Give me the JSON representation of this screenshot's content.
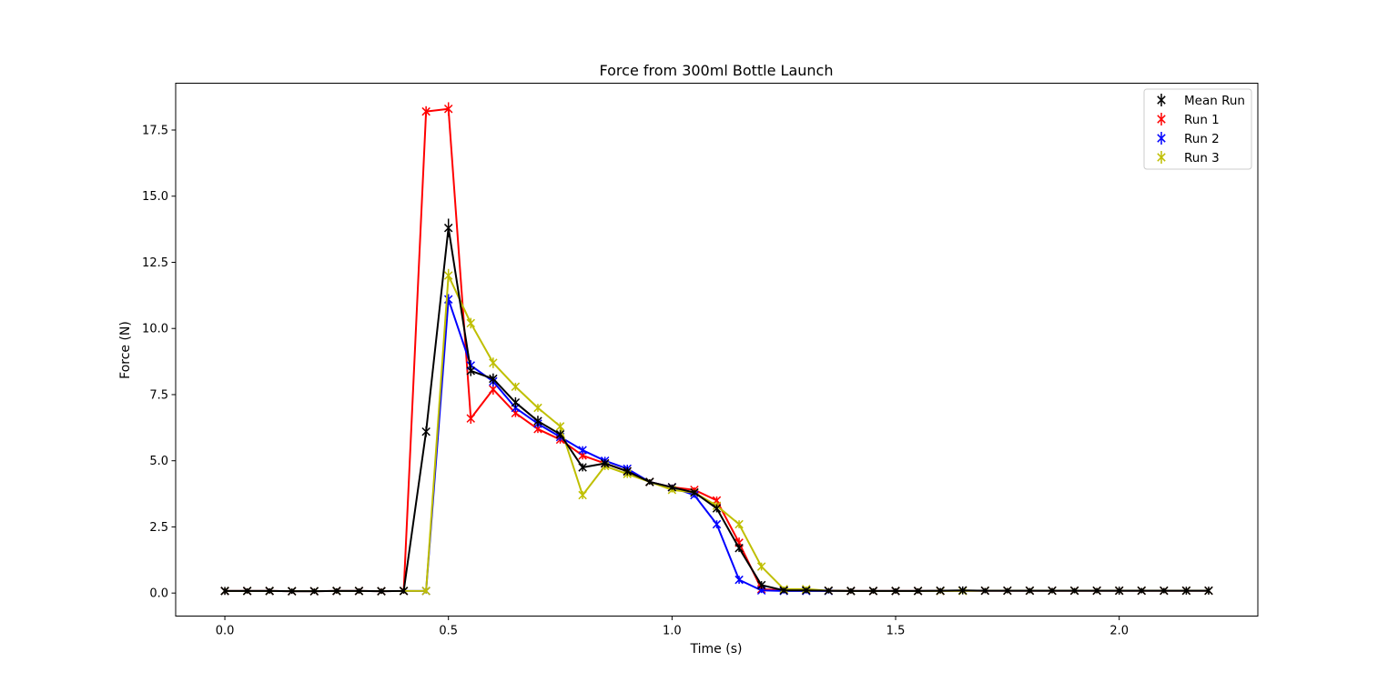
{
  "chart_data": {
    "type": "line",
    "title": "Force from 300ml Bottle Launch",
    "xlabel": "Time (s)",
    "ylabel": "Force (N)",
    "xlim": [
      -0.11,
      2.31
    ],
    "ylim": [
      -0.87,
      19.27
    ],
    "xticks": [
      0.0,
      0.5,
      1.0,
      1.5,
      2.0
    ],
    "xtick_labels": [
      "0.0",
      "0.5",
      "1.0",
      "1.5",
      "2.0"
    ],
    "yticks": [
      0.0,
      2.5,
      5.0,
      7.5,
      10.0,
      12.5,
      15.0,
      17.5
    ],
    "ytick_labels": [
      "0.0",
      "2.5",
      "5.0",
      "7.5",
      "10.0",
      "12.5",
      "15.0",
      "17.5"
    ],
    "grid": false,
    "legend_position": "upper right",
    "marker": "x with vertical error bar",
    "x": [
      0.0,
      0.05,
      0.1,
      0.15,
      0.2,
      0.25,
      0.3,
      0.35,
      0.4,
      0.45,
      0.5,
      0.55,
      0.6,
      0.65,
      0.7,
      0.75,
      0.8,
      0.85,
      0.9,
      0.95,
      1.0,
      1.05,
      1.1,
      1.15,
      1.2,
      1.25,
      1.3,
      1.35,
      1.4,
      1.45,
      1.5,
      1.55,
      1.6,
      1.65,
      1.7,
      1.75,
      1.8,
      1.85,
      1.9,
      1.95,
      2.0,
      2.05,
      2.1,
      2.15,
      2.2
    ],
    "series": [
      {
        "name": "Mean Run",
        "color": "#000000",
        "values": [
          0.08,
          0.08,
          0.08,
          0.07,
          0.07,
          0.08,
          0.08,
          0.07,
          0.08,
          6.1,
          13.8,
          8.4,
          8.1,
          7.2,
          6.5,
          6.0,
          4.75,
          4.9,
          4.6,
          4.2,
          4.0,
          3.8,
          3.2,
          1.7,
          0.3,
          0.1,
          0.1,
          0.09,
          0.08,
          0.08,
          0.08,
          0.08,
          0.09,
          0.1,
          0.09,
          0.09,
          0.09,
          0.09,
          0.09,
          0.09,
          0.09,
          0.09,
          0.09,
          0.09,
          0.09
        ],
        "errors": [
          0.15,
          0.1,
          0.1,
          0.1,
          0.1,
          0.1,
          0.1,
          0.1,
          0.1,
          0.2,
          0.35,
          0.2,
          0.2,
          0.2,
          0.2,
          0.15,
          0.15,
          0.15,
          0.15,
          0.1,
          0.1,
          0.1,
          0.15,
          0.15,
          0.15,
          0.1,
          0.1,
          0.1,
          0.1,
          0.1,
          0.1,
          0.1,
          0.1,
          0.15,
          0.1,
          0.1,
          0.1,
          0.1,
          0.1,
          0.1,
          0.15,
          0.1,
          0.1,
          0.15,
          0.15
        ]
      },
      {
        "name": "Run 1",
        "color": "#ff0000",
        "values": [
          0.08,
          0.08,
          0.08,
          0.07,
          0.07,
          0.08,
          0.08,
          0.07,
          0.08,
          18.2,
          18.3,
          6.6,
          7.7,
          6.8,
          6.2,
          5.8,
          5.2,
          4.9,
          4.6,
          4.2,
          4.0,
          3.9,
          3.5,
          1.9,
          0.15,
          0.1,
          0.1,
          0.09,
          0.08,
          0.08,
          0.08,
          0.08,
          0.08,
          0.09,
          0.09,
          0.09,
          0.09,
          0.09,
          0.09,
          0.09,
          0.09,
          0.09,
          0.09,
          0.09,
          0.09
        ],
        "errors": [
          0.1,
          0.1,
          0.1,
          0.1,
          0.1,
          0.1,
          0.1,
          0.1,
          0.1,
          0.2,
          0.25,
          0.2,
          0.2,
          0.15,
          0.15,
          0.15,
          0.15,
          0.15,
          0.15,
          0.1,
          0.1,
          0.1,
          0.15,
          0.2,
          0.1,
          0.1,
          0.1,
          0.1,
          0.1,
          0.1,
          0.1,
          0.1,
          0.1,
          0.1,
          0.1,
          0.1,
          0.1,
          0.1,
          0.1,
          0.1,
          0.1,
          0.1,
          0.1,
          0.1,
          0.1
        ]
      },
      {
        "name": "Run 2",
        "color": "#0000ff",
        "values": [
          0.08,
          0.08,
          0.08,
          0.07,
          0.07,
          0.08,
          0.08,
          0.07,
          0.08,
          0.08,
          11.1,
          8.6,
          8.0,
          7.0,
          6.4,
          5.9,
          5.4,
          5.0,
          4.7,
          4.2,
          4.0,
          3.7,
          2.6,
          0.5,
          0.1,
          0.08,
          0.08,
          0.08,
          0.08,
          0.08,
          0.08,
          0.08,
          0.08,
          0.09,
          0.09,
          0.09,
          0.09,
          0.09,
          0.09,
          0.09,
          0.09,
          0.09,
          0.09,
          0.09,
          0.09
        ],
        "errors": [
          0.1,
          0.1,
          0.1,
          0.1,
          0.1,
          0.1,
          0.1,
          0.1,
          0.1,
          0.1,
          0.2,
          0.2,
          0.2,
          0.15,
          0.15,
          0.15,
          0.15,
          0.15,
          0.15,
          0.1,
          0.1,
          0.1,
          0.15,
          0.15,
          0.1,
          0.1,
          0.1,
          0.1,
          0.1,
          0.1,
          0.1,
          0.1,
          0.1,
          0.1,
          0.1,
          0.1,
          0.1,
          0.1,
          0.1,
          0.1,
          0.1,
          0.1,
          0.1,
          0.1,
          0.1
        ]
      },
      {
        "name": "Run 3",
        "color": "#bfbf00",
        "values": [
          0.08,
          0.08,
          0.08,
          0.07,
          0.07,
          0.08,
          0.08,
          0.07,
          0.08,
          0.08,
          12.0,
          10.2,
          8.7,
          7.8,
          7.0,
          6.3,
          3.7,
          4.8,
          4.5,
          4.2,
          3.9,
          3.8,
          3.3,
          2.6,
          1.0,
          0.15,
          0.15,
          0.09,
          0.08,
          0.08,
          0.08,
          0.08,
          0.08,
          0.08,
          0.09,
          0.09,
          0.09,
          0.09,
          0.09,
          0.09,
          0.09,
          0.09,
          0.09,
          0.09,
          0.09
        ],
        "errors": [
          0.1,
          0.1,
          0.1,
          0.1,
          0.1,
          0.1,
          0.1,
          0.1,
          0.1,
          0.1,
          0.25,
          0.2,
          0.2,
          0.15,
          0.15,
          0.15,
          0.15,
          0.15,
          0.15,
          0.1,
          0.1,
          0.1,
          0.15,
          0.15,
          0.15,
          0.1,
          0.1,
          0.1,
          0.1,
          0.1,
          0.1,
          0.1,
          0.1,
          0.1,
          0.1,
          0.1,
          0.1,
          0.1,
          0.1,
          0.1,
          0.1,
          0.1,
          0.1,
          0.1,
          0.1
        ]
      }
    ],
    "draw_order": [
      "Run 1",
      "Run 2",
      "Run 3",
      "Mean Run"
    ]
  }
}
